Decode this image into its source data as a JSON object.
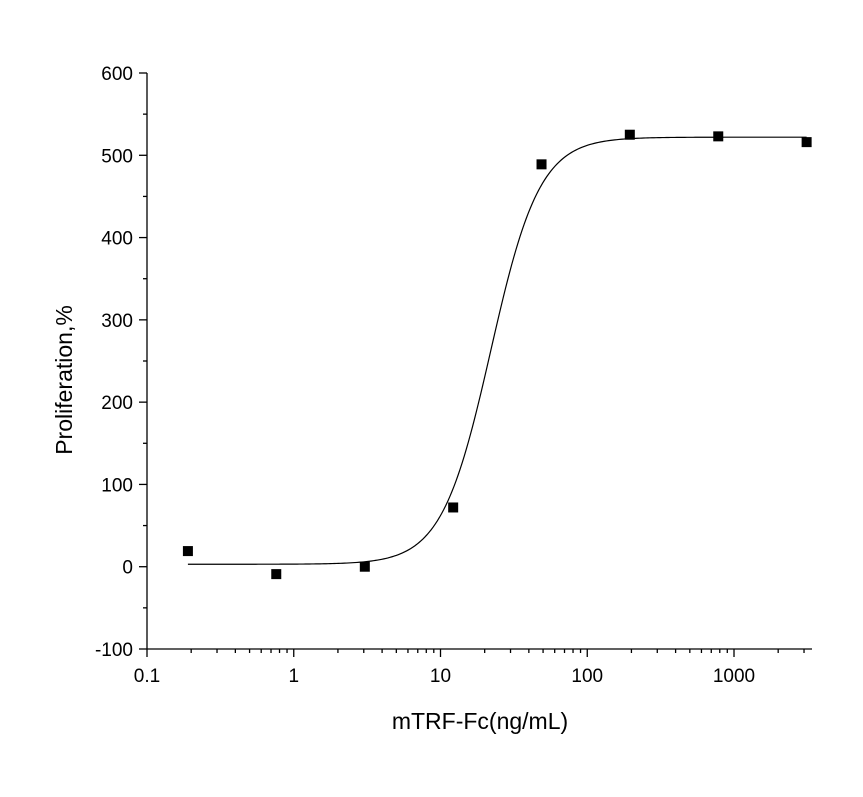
{
  "chart_data": {
    "type": "scatter",
    "xlabel": "mTRF-Fc(ng/mL)",
    "ylabel": "Proliferation,%",
    "xscale": "log",
    "xlim": [
      0.1,
      3400
    ],
    "ylim": [
      -100,
      600
    ],
    "xticks": [
      0.1,
      1,
      10,
      100,
      1000
    ],
    "xtick_labels": [
      "0.1",
      "1",
      "10",
      "100",
      "1000"
    ],
    "yticks": [
      -100,
      0,
      100,
      200,
      300,
      400,
      500,
      600
    ],
    "ytick_labels": [
      "-100",
      "0",
      "100",
      "200",
      "300",
      "400",
      "500",
      "600"
    ],
    "grid": false,
    "series": [
      {
        "marker": "square",
        "color": "#000000",
        "x": [
          0.19,
          0.76,
          3.05,
          12.2,
          48.8,
          195,
          781,
          3125
        ],
        "y": [
          19,
          -9,
          0,
          72,
          489,
          525,
          523,
          516
        ]
      }
    ],
    "fit_curve": {
      "model": "4PL sigmoid",
      "color": "#000000",
      "bottom": 3,
      "top": 522,
      "ec50": 22,
      "hill": 2.6,
      "x_range": [
        0.19,
        3125
      ]
    }
  }
}
